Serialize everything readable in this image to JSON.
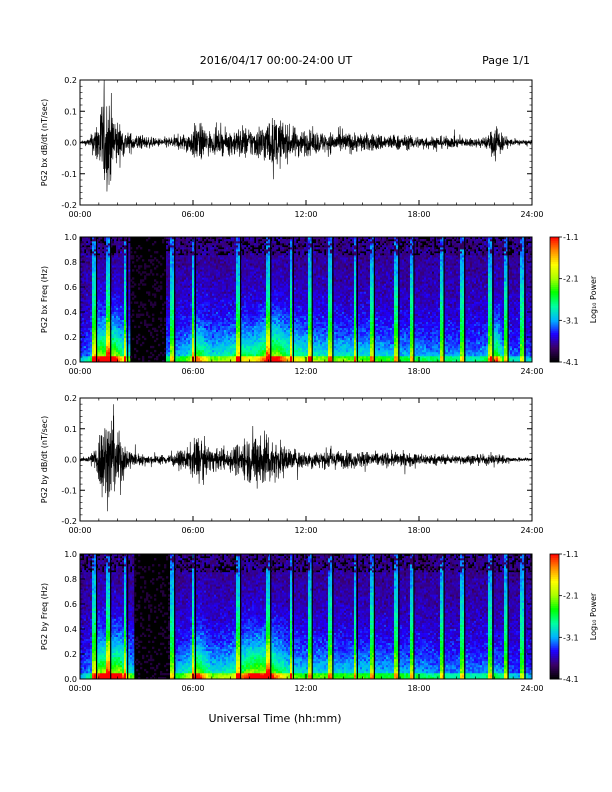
{
  "header": {
    "title": "2016/04/17  00:00-24:00 UT",
    "page": "Page 1/1"
  },
  "footer": {
    "xlabel": "Universal Time (hh:mm)"
  },
  "colorbar": {
    "label": "Log₁₀ Power",
    "ticks": [
      "-1.1",
      "-2.1",
      "-3.1",
      "-4.1"
    ],
    "range": [
      -4.1,
      -1.1
    ],
    "colors": [
      "#000000",
      "#3a0066",
      "#1f00ff",
      "#00b3ff",
      "#00ffa0",
      "#00ff00",
      "#aaff00",
      "#ffff00",
      "#ff8c00",
      "#ff0000"
    ]
  },
  "chart_data": [
    {
      "type": "line",
      "ylabel": "PG2 bx dB/dt (nT/sec)",
      "xlim": [
        0,
        24
      ],
      "ylim": [
        -0.2,
        0.2
      ],
      "x_ticks": [
        "00:00",
        "06:00",
        "12:00",
        "18:00",
        "24:00"
      ],
      "y_ticks": [
        "0.2",
        "0.1",
        "0.0",
        "-0.1",
        "-0.2"
      ],
      "envelope_amplitude": {
        "hours": [
          0,
          0.5,
          0.8,
          1.2,
          1.6,
          2.0,
          2.5,
          3.0,
          4.0,
          5.0,
          5.8,
          6.2,
          7.0,
          8.0,
          8.6,
          9.2,
          10.0,
          10.5,
          11.0,
          12.0,
          13.0,
          14.0,
          15.0,
          16.0,
          17.0,
          18.0,
          19.0,
          20.0,
          21.0,
          21.7,
          22.1,
          22.5,
          23.0,
          24.0
        ],
        "amp": [
          0.005,
          0.02,
          0.08,
          0.22,
          0.22,
          0.1,
          0.05,
          0.04,
          0.02,
          0.03,
          0.05,
          0.1,
          0.05,
          0.06,
          0.08,
          0.07,
          0.11,
          0.12,
          0.08,
          0.06,
          0.05,
          0.05,
          0.045,
          0.04,
          0.035,
          0.03,
          0.03,
          0.025,
          0.02,
          0.035,
          0.11,
          0.03,
          0.015,
          0.01
        ]
      }
    },
    {
      "type": "heatmap",
      "ylabel": "PG2 bx Freq (Hz)",
      "xlim": [
        0,
        24
      ],
      "ylim": [
        0,
        1.0
      ],
      "x_ticks": [
        "00:00",
        "06:00",
        "12:00",
        "18:00",
        "24:00"
      ],
      "y_ticks": [
        "1.0",
        "0.8",
        "0.6",
        "0.4",
        "0.2",
        "0.0"
      ],
      "value_range": [
        -4.1,
        -1.1
      ],
      "quiet_gap_hours": [
        2.7,
        4.6
      ],
      "bright_columns_hours": [
        0.75,
        1.5,
        2.4,
        4.9,
        6.0,
        8.4,
        10.0,
        11.2,
        12.2,
        13.3,
        14.6,
        15.5,
        16.8,
        17.6,
        19.2,
        20.3,
        21.8,
        22.6,
        23.5
      ]
    },
    {
      "type": "line",
      "ylabel": "PG2 by dB/dt (nT/sec)",
      "xlim": [
        0,
        24
      ],
      "ylim": [
        -0.2,
        0.2
      ],
      "x_ticks": [
        "00:00",
        "06:00",
        "12:00",
        "18:00",
        "24:00"
      ],
      "y_ticks": [
        "0.2",
        "0.1",
        "0.0",
        "-0.1",
        "-0.2"
      ],
      "envelope_amplitude": {
        "hours": [
          0,
          0.5,
          0.8,
          1.2,
          1.6,
          2.0,
          2.5,
          3.0,
          4.0,
          5.0,
          5.8,
          6.2,
          7.0,
          8.0,
          8.6,
          9.2,
          9.8,
          10.3,
          11.0,
          12.0,
          13.0,
          14.0,
          15.0,
          16.0,
          17.0,
          18.0,
          19.0,
          20.0,
          20.5,
          21.0,
          21.7,
          22.1,
          22.5,
          23.0,
          24.0
        ],
        "amp": [
          0.005,
          0.02,
          0.06,
          0.2,
          0.22,
          0.15,
          0.06,
          0.03,
          0.02,
          0.03,
          0.06,
          0.12,
          0.05,
          0.06,
          0.09,
          0.13,
          0.15,
          0.1,
          0.06,
          0.04,
          0.045,
          0.04,
          0.04,
          0.035,
          0.035,
          0.03,
          0.025,
          0.02,
          0.025,
          0.02,
          0.025,
          0.03,
          0.02,
          0.01,
          0.008
        ]
      }
    },
    {
      "type": "heatmap",
      "ylabel": "PG2 by Freq (Hz)",
      "xlim": [
        0,
        24
      ],
      "ylim": [
        0,
        1.0
      ],
      "x_ticks": [
        "00:00",
        "06:00",
        "12:00",
        "18:00",
        "24:00"
      ],
      "y_ticks": [
        "1.0",
        "0.8",
        "0.6",
        "0.4",
        "0.2",
        "0.0"
      ],
      "value_range": [
        -4.1,
        -1.1
      ],
      "quiet_gap_hours": [
        2.9,
        4.8
      ],
      "bright_columns_hours": [
        0.75,
        1.5,
        2.4,
        4.9,
        6.0,
        8.4,
        10.0,
        11.2,
        12.2,
        13.3,
        14.6,
        15.5,
        16.8,
        17.6,
        19.2,
        20.3,
        21.8,
        22.6,
        23.5
      ]
    }
  ]
}
